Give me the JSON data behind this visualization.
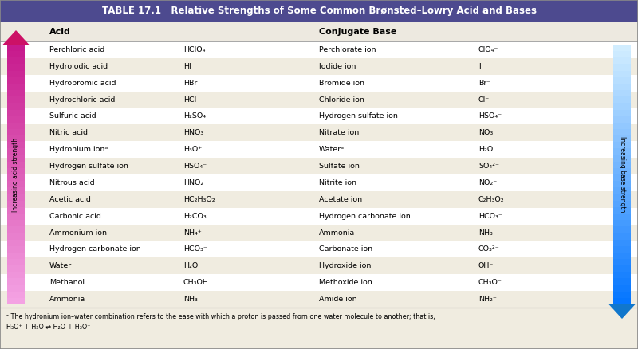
{
  "title": "TABLE 17.1   Relative Strengths of Some Common Brønsted–Lowry Acid and Bases",
  "title_bg": "#4d4a8f",
  "title_color": "#ffffff",
  "header_bg": "#ede9e0",
  "acids": [
    "Perchloric acid",
    "Hydroiodic acid",
    "Hydrobromic acid",
    "Hydrochloric acid",
    "Sulfuric acid",
    "Nitric acid",
    "Hydronium ionᵃ",
    "Hydrogen sulfate ion",
    "Nitrous acid",
    "Acetic acid",
    "Carbonic acid",
    "Ammonium ion",
    "Hydrogen carbonate ion",
    "Water",
    "Methanol",
    "Ammonia"
  ],
  "acid_formulas": [
    "HClO₄",
    "HI",
    "HBr",
    "HCl",
    "H₂SO₄",
    "HNO₃",
    "H₃O⁺",
    "HSO₄⁻",
    "HNO₂",
    "HC₂H₃O₂",
    "H₂CO₃",
    "NH₄⁺",
    "HCO₃⁻",
    "H₂O",
    "CH₃OH",
    "NH₃"
  ],
  "conjugates": [
    "Perchlorate ion",
    "Iodide ion",
    "Bromide ion",
    "Chloride ion",
    "Hydrogen sulfate ion",
    "Nitrate ion",
    "Waterᵃ",
    "Sulfate ion",
    "Nitrite ion",
    "Acetate ion",
    "Hydrogen carbonate ion",
    "Ammonia",
    "Carbonate ion",
    "Hydroxide ion",
    "Methoxide ion",
    "Amide ion"
  ],
  "conj_formulas": [
    "ClO₄⁻",
    "I⁻",
    "Br⁻",
    "Cl⁻",
    "HSO₄⁻",
    "NO₃⁻",
    "H₂O",
    "SO₄²⁻",
    "NO₂⁻",
    "C₂H₃O₂⁻",
    "HCO₃⁻",
    "NH₃",
    "CO₃²⁻",
    "OH⁻",
    "CH₃O⁻",
    "NH₂⁻"
  ],
  "footnote_a": "ᵃ The hydronium ion–water combination refers to the ease with which a proton is passed from one water molecule to another; that is,",
  "footnote_b": "H₃O⁺ + H₂O ⇌ H₂O + H₃O⁺",
  "bg_color": "#f0ece0",
  "row_bg_even": "#ffffff",
  "row_bg_odd": "#f0ece0"
}
